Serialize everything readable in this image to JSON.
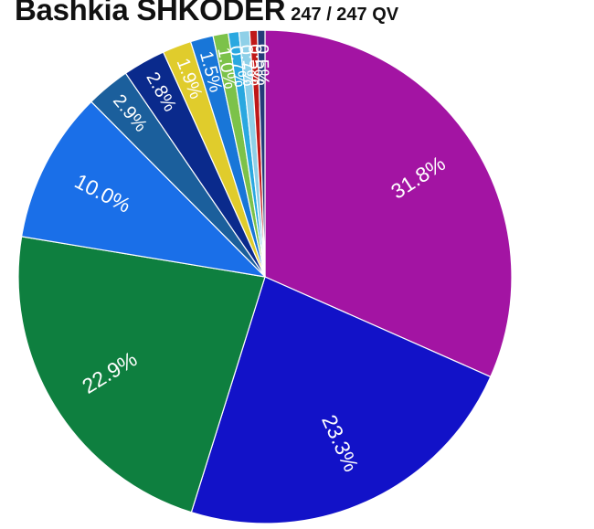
{
  "title": "Bashkia SHKODER",
  "subtitle": "247 / 247 QV",
  "chart_data": {
    "type": "pie",
    "start_angle_deg": 0,
    "direction": "clockwise",
    "slices": [
      {
        "value": 31.8,
        "label": "31.8%",
        "color": "#a314a3"
      },
      {
        "value": 23.3,
        "label": "23.3%",
        "color": "#1212c8"
      },
      {
        "value": 22.9,
        "label": "22.9%",
        "color": "#0e7f3f"
      },
      {
        "value": 10.0,
        "label": "10.0%",
        "color": "#1a6fe8"
      },
      {
        "value": 2.9,
        "label": "2.9%",
        "color": "#1b5f9c"
      },
      {
        "value": 2.8,
        "label": "2.8%",
        "color": "#0a2a8c"
      },
      {
        "value": 1.9,
        "label": "1.9%",
        "color": "#e0cc2c"
      },
      {
        "value": 1.5,
        "label": "1.5%",
        "color": "#1876d8"
      },
      {
        "value": 1.0,
        "label": "1.0%",
        "color": "#7cc24a"
      },
      {
        "value": 0.7,
        "label": "0.7%",
        "color": "#2aa8e0"
      },
      {
        "value": 0.7,
        "label": "0.7%",
        "color": "#8fd0e8"
      },
      {
        "value": 0.5,
        "label": "0.5%",
        "color": "#c01818"
      },
      {
        "value": 0.5,
        "label": "0.5%",
        "color": "#243a78"
      }
    ]
  }
}
